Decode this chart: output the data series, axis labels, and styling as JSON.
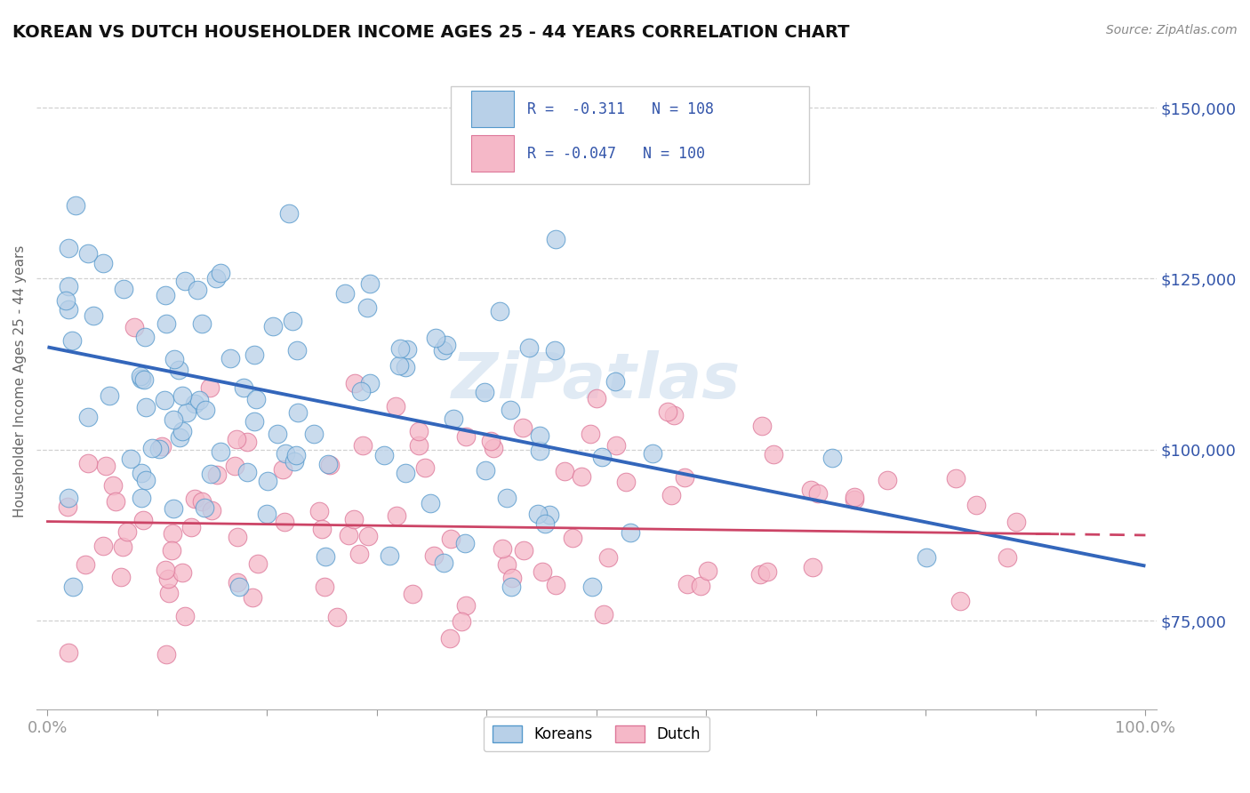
{
  "title": "KOREAN VS DUTCH HOUSEHOLDER INCOME AGES 25 - 44 YEARS CORRELATION CHART",
  "source": "Source: ZipAtlas.com",
  "ylabel": "Householder Income Ages 25 - 44 years",
  "xlim": [
    -0.01,
    1.01
  ],
  "ylim": [
    62000,
    158000
  ],
  "yticks": [
    75000,
    100000,
    125000,
    150000
  ],
  "ytick_labels": [
    "$75,000",
    "$100,000",
    "$125,000",
    "$150,000"
  ],
  "background_color": "#ffffff",
  "grid_color": "#cccccc",
  "korean_fill_color": "#b8d0e8",
  "korean_edge_color": "#5599cc",
  "dutch_fill_color": "#f5b8c8",
  "dutch_edge_color": "#dd7799",
  "korean_line_color": "#3366bb",
  "dutch_line_color": "#cc4466",
  "legend_text_color": "#3355aa",
  "legend_r_korean": "R =  -0.311",
  "legend_n_korean": "N = 108",
  "legend_r_dutch": "R = -0.047",
  "legend_n_dutch": "N = 100",
  "korean_line_y0": 115000,
  "korean_line_y1": 83000,
  "dutch_line_y0": 89500,
  "dutch_line_y1": 87500,
  "watermark": "ZiPatlas",
  "title_fontsize": 14,
  "source_fontsize": 10,
  "tick_fontsize": 13,
  "ylabel_fontsize": 11
}
